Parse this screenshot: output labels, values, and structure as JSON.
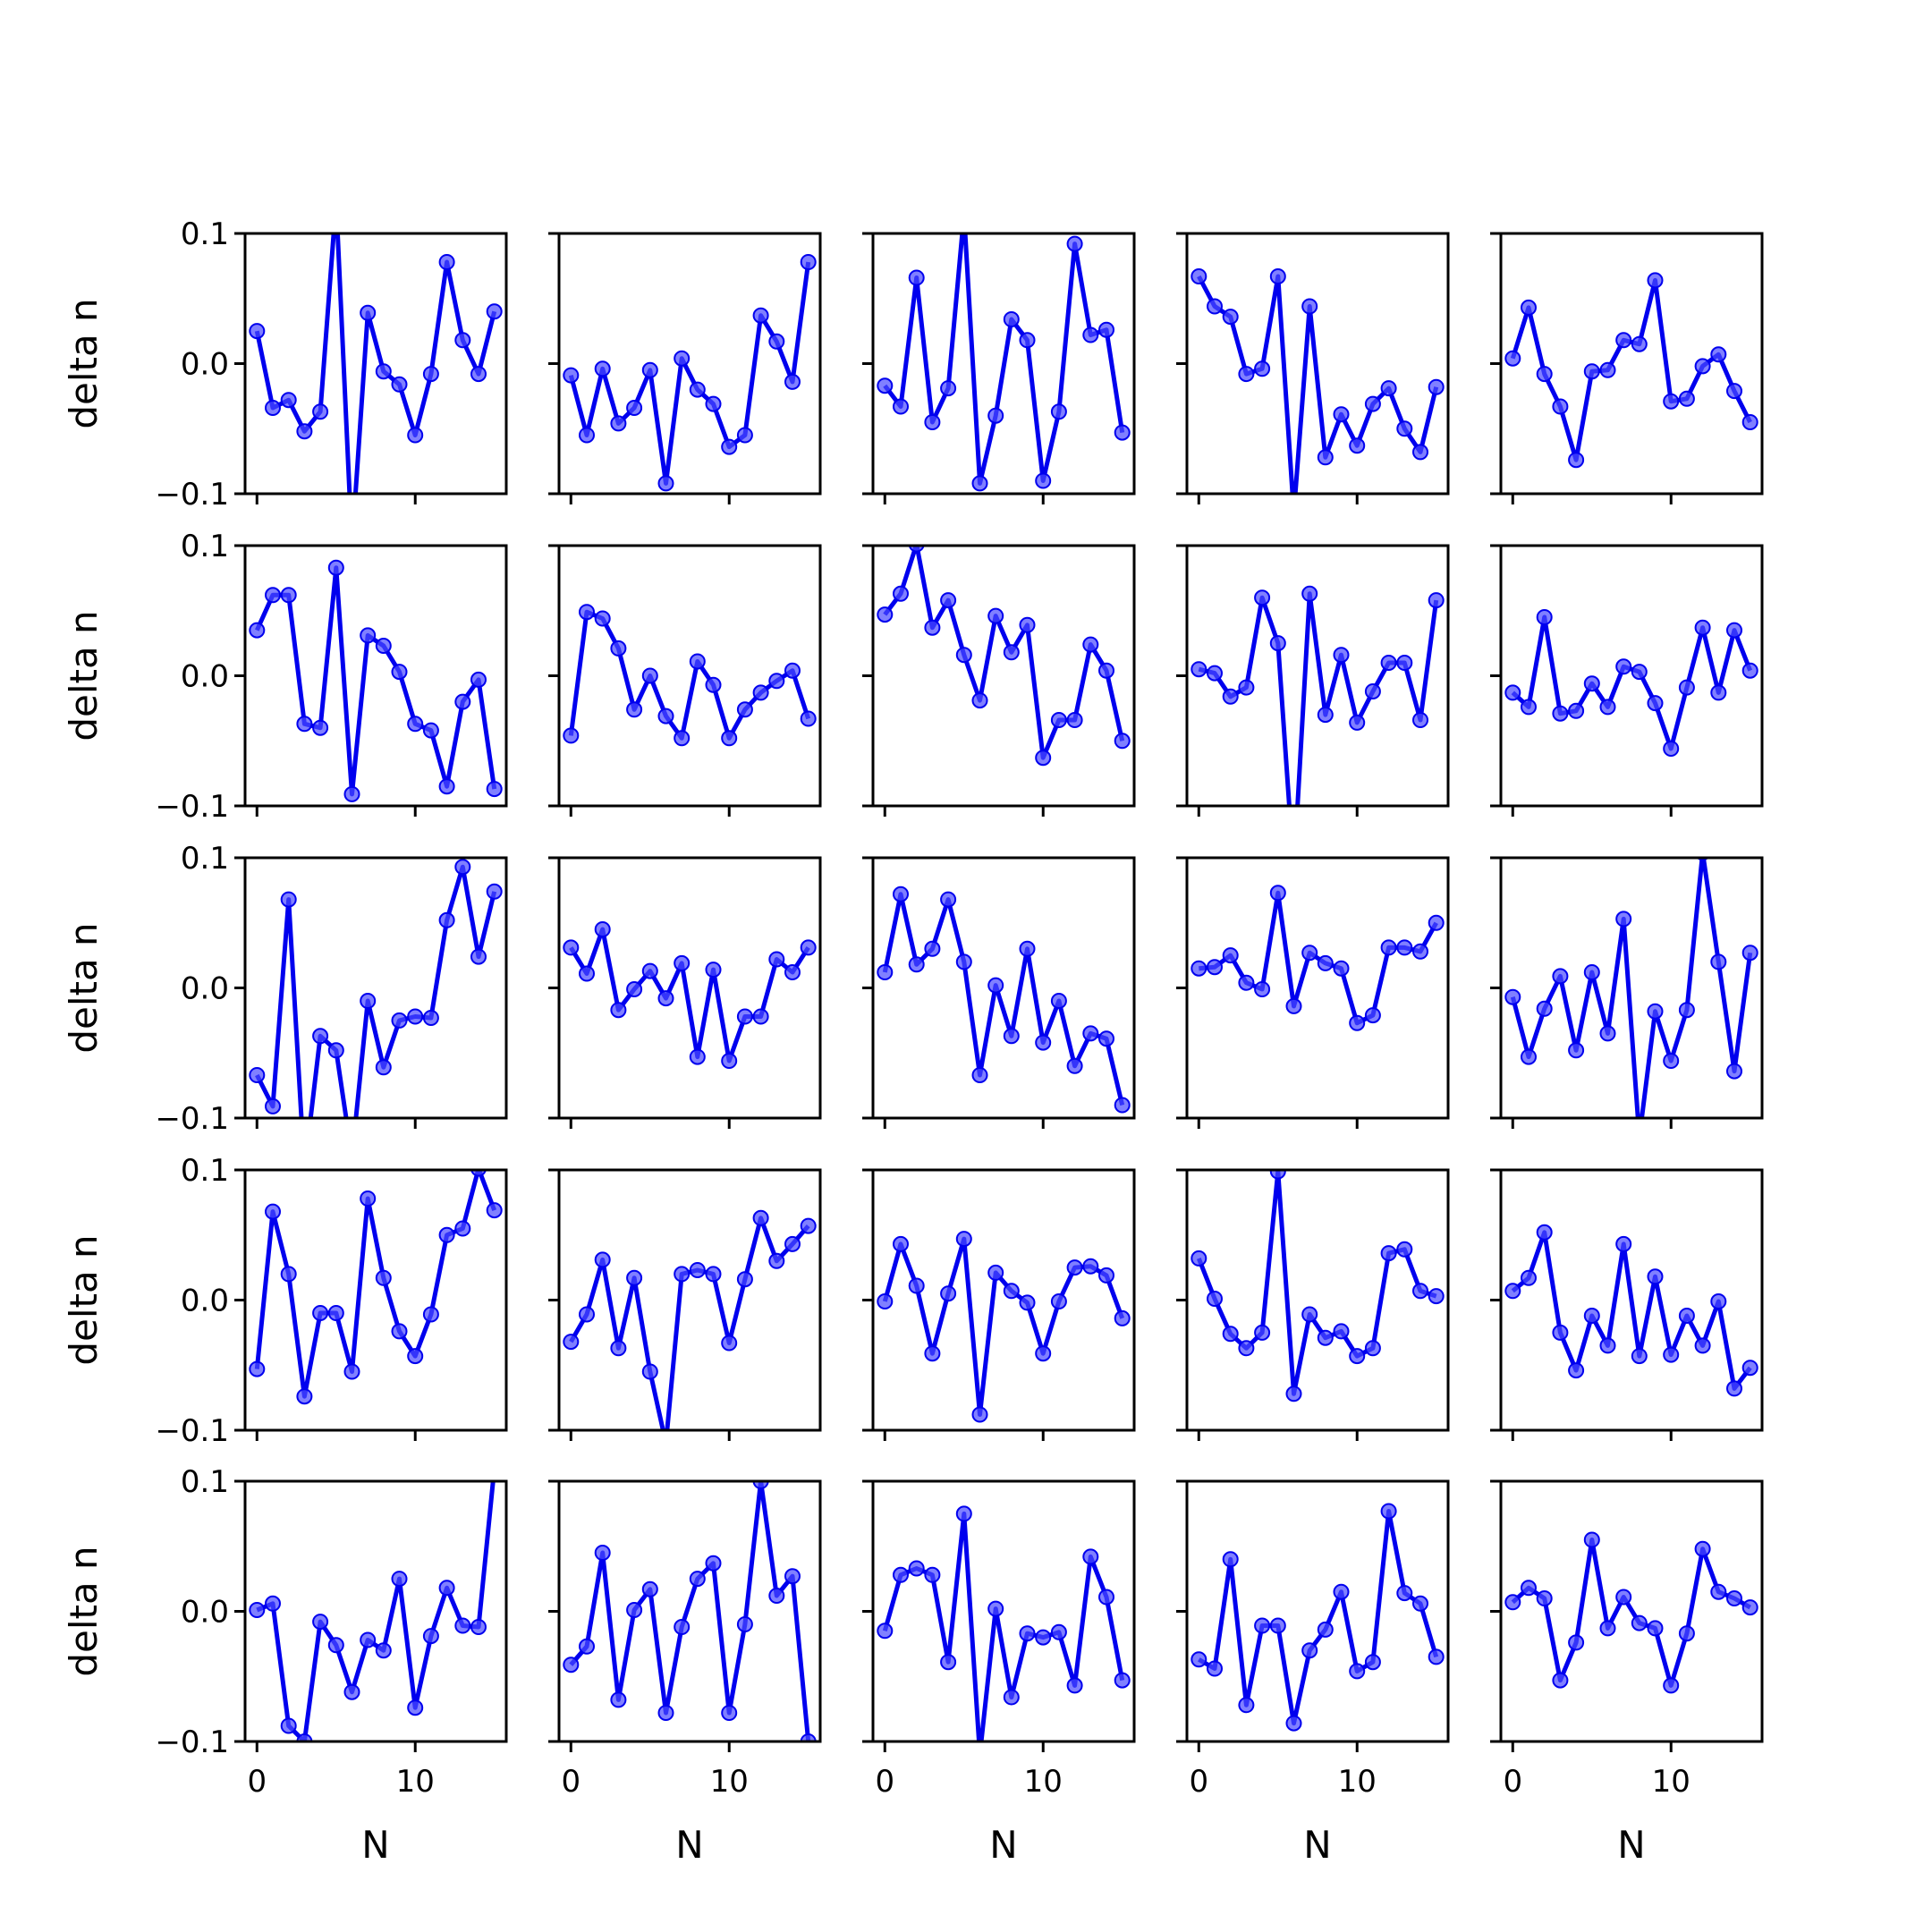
{
  "figure": {
    "grid": {
      "rows": 5,
      "cols": 5
    },
    "colors": {
      "line": "#0000ee",
      "marker": "#4a4aff",
      "frame": "#000000",
      "background": "#ffffff"
    }
  },
  "chart_data": {
    "type": "line",
    "xlabel": "N",
    "ylabel": "delta n",
    "xlim": [
      -0.75,
      15.75
    ],
    "ylim": [
      -0.1,
      0.1
    ],
    "x_ticks": [
      0,
      10
    ],
    "x_tick_labels": [
      "0",
      "10"
    ],
    "y_ticks": [
      -0.1,
      0.0,
      0.1
    ],
    "y_tick_labels": [
      "−0.1",
      "0.0",
      "0.1"
    ],
    "x": [
      0,
      1,
      2,
      3,
      4,
      5,
      6,
      7,
      8,
      9,
      10,
      11,
      12,
      13,
      14,
      15
    ],
    "panels": [
      {
        "row": 0,
        "col": 0,
        "y": [
          0.025,
          -0.034,
          -0.028,
          -0.052,
          -0.037,
          0.125,
          -0.14,
          0.039,
          -0.006,
          -0.016,
          -0.055,
          -0.008,
          0.078,
          0.018,
          -0.008,
          0.04
        ]
      },
      {
        "row": 0,
        "col": 1,
        "y": [
          -0.009,
          -0.055,
          -0.004,
          -0.046,
          -0.034,
          -0.005,
          -0.092,
          0.004,
          -0.02,
          -0.031,
          -0.064,
          -0.055,
          0.037,
          0.017,
          -0.014,
          0.078
        ]
      },
      {
        "row": 0,
        "col": 2,
        "y": [
          -0.017,
          -0.033,
          0.066,
          -0.045,
          -0.019,
          0.115,
          -0.092,
          -0.04,
          0.034,
          0.018,
          -0.09,
          -0.037,
          0.092,
          0.022,
          0.026,
          -0.053
        ]
      },
      {
        "row": 0,
        "col": 3,
        "y": [
          0.067,
          0.044,
          0.036,
          -0.008,
          -0.004,
          0.067,
          -0.115,
          0.044,
          -0.072,
          -0.039,
          -0.063,
          -0.031,
          -0.019,
          -0.05,
          -0.068,
          -0.018
        ]
      },
      {
        "row": 0,
        "col": 4,
        "y": [
          0.004,
          0.043,
          -0.008,
          -0.033,
          -0.074,
          -0.006,
          -0.005,
          0.018,
          0.015,
          0.064,
          -0.029,
          -0.027,
          -0.002,
          0.007,
          -0.021,
          -0.045
        ]
      },
      {
        "row": 1,
        "col": 0,
        "y": [
          0.035,
          0.062,
          0.062,
          -0.037,
          -0.04,
          0.083,
          -0.091,
          0.031,
          0.023,
          0.003,
          -0.037,
          -0.042,
          -0.085,
          -0.02,
          -0.003,
          -0.087
        ]
      },
      {
        "row": 1,
        "col": 1,
        "y": [
          -0.046,
          0.049,
          0.044,
          0.021,
          -0.026,
          0.0,
          -0.031,
          -0.048,
          0.011,
          -0.007,
          -0.048,
          -0.026,
          -0.013,
          -0.004,
          0.004,
          -0.033
        ]
      },
      {
        "row": 1,
        "col": 2,
        "y": [
          0.047,
          0.063,
          0.101,
          0.037,
          0.058,
          0.016,
          -0.019,
          0.046,
          0.018,
          0.039,
          -0.063,
          -0.034,
          -0.034,
          0.024,
          0.004,
          -0.05
        ]
      },
      {
        "row": 1,
        "col": 3,
        "y": [
          0.005,
          0.002,
          -0.016,
          -0.009,
          0.06,
          0.025,
          -0.15,
          0.063,
          -0.03,
          0.016,
          -0.036,
          -0.012,
          0.01,
          0.01,
          -0.034,
          0.058
        ]
      },
      {
        "row": 1,
        "col": 4,
        "y": [
          -0.013,
          -0.024,
          0.045,
          -0.029,
          -0.027,
          -0.006,
          -0.024,
          0.007,
          0.003,
          -0.021,
          -0.056,
          -0.009,
          0.037,
          -0.013,
          0.035,
          0.004
        ]
      },
      {
        "row": 2,
        "col": 0,
        "y": [
          -0.067,
          -0.091,
          0.068,
          -0.14,
          -0.037,
          -0.048,
          -0.13,
          -0.01,
          -0.061,
          -0.025,
          -0.022,
          -0.023,
          0.052,
          0.093,
          0.024,
          0.074
        ]
      },
      {
        "row": 2,
        "col": 1,
        "y": [
          0.031,
          0.011,
          0.045,
          -0.017,
          -0.001,
          0.013,
          -0.008,
          0.019,
          -0.053,
          0.014,
          -0.056,
          -0.022,
          -0.022,
          0.022,
          0.012,
          0.031
        ]
      },
      {
        "row": 2,
        "col": 2,
        "y": [
          0.012,
          0.072,
          0.018,
          0.03,
          0.068,
          0.02,
          -0.067,
          0.002,
          -0.037,
          0.03,
          -0.042,
          -0.01,
          -0.06,
          -0.035,
          -0.039,
          -0.09
        ]
      },
      {
        "row": 2,
        "col": 3,
        "y": [
          0.015,
          0.016,
          0.025,
          0.004,
          -0.001,
          0.073,
          -0.014,
          0.027,
          0.019,
          0.015,
          -0.027,
          -0.021,
          0.031,
          0.031,
          0.028,
          0.05
        ]
      },
      {
        "row": 2,
        "col": 4,
        "y": [
          -0.007,
          -0.053,
          -0.016,
          0.009,
          -0.048,
          0.012,
          -0.035,
          0.053,
          -0.115,
          -0.018,
          -0.056,
          -0.017,
          0.104,
          0.02,
          -0.064,
          0.027
        ]
      },
      {
        "row": 3,
        "col": 0,
        "y": [
          -0.053,
          0.068,
          0.02,
          -0.074,
          -0.01,
          -0.01,
          -0.055,
          0.078,
          0.017,
          -0.024,
          -0.043,
          -0.011,
          0.05,
          0.055,
          0.101,
          0.069
        ]
      },
      {
        "row": 3,
        "col": 1,
        "y": [
          -0.032,
          -0.011,
          0.031,
          -0.037,
          0.017,
          -0.055,
          -0.11,
          0.02,
          0.023,
          0.02,
          -0.033,
          0.016,
          0.063,
          0.03,
          0.043,
          0.057
        ]
      },
      {
        "row": 3,
        "col": 2,
        "y": [
          -0.001,
          0.043,
          0.011,
          -0.041,
          0.005,
          0.047,
          -0.088,
          0.021,
          0.007,
          -0.002,
          -0.041,
          -0.001,
          0.025,
          0.026,
          0.019,
          -0.014
        ]
      },
      {
        "row": 3,
        "col": 3,
        "y": [
          0.032,
          0.001,
          -0.026,
          -0.037,
          -0.025,
          0.099,
          -0.072,
          -0.011,
          -0.029,
          -0.024,
          -0.043,
          -0.037,
          0.036,
          0.039,
          0.007,
          0.003
        ]
      },
      {
        "row": 3,
        "col": 4,
        "y": [
          0.007,
          0.017,
          0.052,
          -0.025,
          -0.054,
          -0.012,
          -0.035,
          0.043,
          -0.043,
          0.018,
          -0.042,
          -0.012,
          -0.035,
          -0.001,
          -0.068,
          -0.052
        ]
      },
      {
        "row": 4,
        "col": 0,
        "y": [
          0.001,
          0.006,
          -0.088,
          -0.1,
          -0.008,
          -0.026,
          -0.062,
          -0.022,
          -0.03,
          0.025,
          -0.074,
          -0.019,
          0.018,
          -0.011,
          -0.012,
          0.11
        ]
      },
      {
        "row": 4,
        "col": 1,
        "y": [
          -0.041,
          -0.027,
          0.045,
          -0.068,
          0.001,
          0.017,
          -0.078,
          -0.012,
          0.025,
          0.037,
          -0.078,
          -0.01,
          0.1,
          0.012,
          0.027,
          -0.1
        ]
      },
      {
        "row": 4,
        "col": 2,
        "y": [
          -0.015,
          0.028,
          0.033,
          0.028,
          -0.039,
          0.075,
          -0.11,
          0.002,
          -0.066,
          -0.017,
          -0.02,
          -0.016,
          -0.057,
          0.042,
          0.011,
          -0.053
        ]
      },
      {
        "row": 4,
        "col": 3,
        "y": [
          -0.037,
          -0.044,
          0.04,
          -0.072,
          -0.011,
          -0.011,
          -0.086,
          -0.03,
          -0.014,
          0.015,
          -0.046,
          -0.039,
          0.077,
          0.014,
          0.006,
          -0.035
        ]
      },
      {
        "row": 4,
        "col": 4,
        "y": [
          0.007,
          0.018,
          0.01,
          -0.053,
          -0.024,
          0.055,
          -0.013,
          0.011,
          -0.009,
          -0.013,
          -0.057,
          -0.017,
          0.048,
          0.015,
          0.01,
          0.003
        ]
      }
    ]
  }
}
